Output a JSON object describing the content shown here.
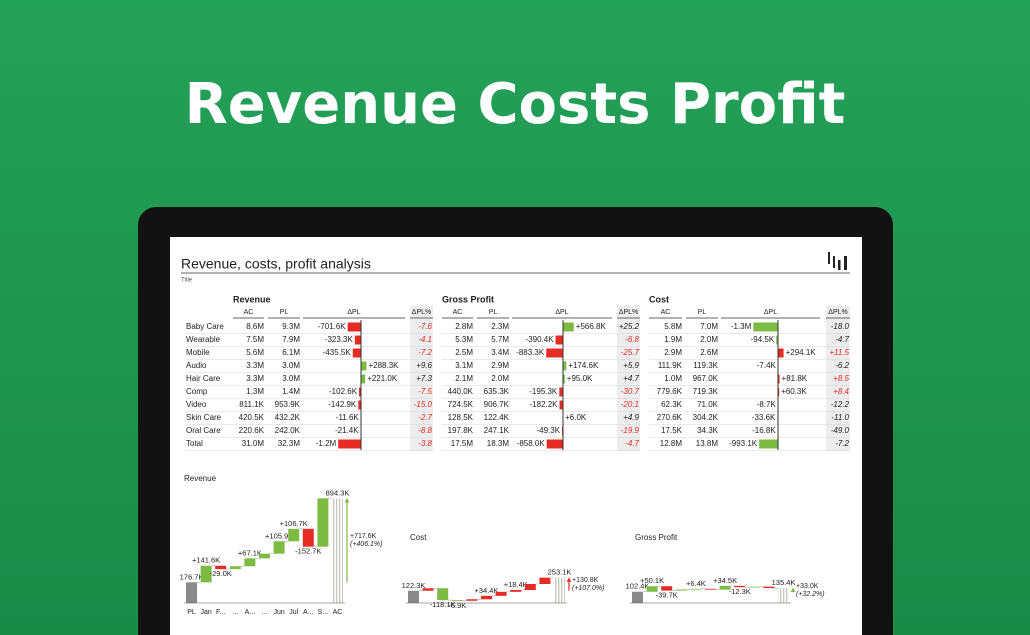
{
  "header": {
    "title": "Revenue Costs Profit"
  },
  "report": {
    "title": "Revenue, costs, profit analysis",
    "subtitle": "Title"
  },
  "table": {
    "row_labels": [
      "Baby Care",
      "Wearable",
      "Mobile",
      "Audio",
      "Hair Care",
      "Comp",
      "Video",
      "Skin Care",
      "Oral Care",
      "Total"
    ],
    "column_headers": [
      "AC",
      "PL",
      "ΔPL",
      "ΔPL%"
    ],
    "sections": [
      {
        "name": "Revenue",
        "increase_is_good": true,
        "good_color": "#7dbb42",
        "bad_color": "#e42b24",
        "rows": [
          {
            "ac": "8.6M",
            "pl": "9.3M",
            "dpl": "-701.6K",
            "dpl_value": -701.6,
            "dpl_pct": "-7.6"
          },
          {
            "ac": "7.5M",
            "pl": "7.9M",
            "dpl": "-323.3K",
            "dpl_value": -323.3,
            "dpl_pct": "-4.1"
          },
          {
            "ac": "5.6M",
            "pl": "6.1M",
            "dpl": "-435.5K",
            "dpl_value": -435.5,
            "dpl_pct": "-7.2"
          },
          {
            "ac": "3.3M",
            "pl": "3.0M",
            "dpl": "+288.3K",
            "dpl_value": 288.3,
            "dpl_pct": "+9.6"
          },
          {
            "ac": "3.3M",
            "pl": "3.0M",
            "dpl": "+221.0K",
            "dpl_value": 221.0,
            "dpl_pct": "+7.3"
          },
          {
            "ac": "1.3M",
            "pl": "1.4M",
            "dpl": "-102.6K",
            "dpl_value": -102.6,
            "dpl_pct": "-7.5"
          },
          {
            "ac": "811.1K",
            "pl": "953.9K",
            "dpl": "-142.9K",
            "dpl_value": -142.9,
            "dpl_pct": "-15.0"
          },
          {
            "ac": "420.5K",
            "pl": "432.2K",
            "dpl": "-11.6K",
            "dpl_value": -11.6,
            "dpl_pct": "-2.7"
          },
          {
            "ac": "220.6K",
            "pl": "242.0K",
            "dpl": "-21.4K",
            "dpl_value": -21.4,
            "dpl_pct": "-8.8"
          },
          {
            "ac": "31.0M",
            "pl": "32.3M",
            "dpl": "-1.2M",
            "dpl_value": -1200,
            "dpl_pct": "-3.8"
          }
        ]
      },
      {
        "name": "Gross Profit",
        "increase_is_good": true,
        "good_color": "#7dbb42",
        "bad_color": "#e42b24",
        "rows": [
          {
            "ac": "2.8M",
            "pl": "2.3M",
            "dpl": "+566.8K",
            "dpl_value": 566.8,
            "dpl_pct": "+25.2"
          },
          {
            "ac": "5.3M",
            "pl": "5.7M",
            "dpl": "-390.4K",
            "dpl_value": -390.4,
            "dpl_pct": "-6.8"
          },
          {
            "ac": "2.5M",
            "pl": "3.4M",
            "dpl": "-883.3K",
            "dpl_value": -883.3,
            "dpl_pct": "-25.7"
          },
          {
            "ac": "3.1M",
            "pl": "2.9M",
            "dpl": "+174.6K",
            "dpl_value": 174.6,
            "dpl_pct": "+5.9"
          },
          {
            "ac": "2.1M",
            "pl": "2.0M",
            "dpl": "+95.0K",
            "dpl_value": 95.0,
            "dpl_pct": "+4.7"
          },
          {
            "ac": "440.0K",
            "pl": "635.3K",
            "dpl": "-195.3K",
            "dpl_value": -195.3,
            "dpl_pct": "-30.7"
          },
          {
            "ac": "724.5K",
            "pl": "906.7K",
            "dpl": "-182.2K",
            "dpl_value": -182.2,
            "dpl_pct": "-20.1"
          },
          {
            "ac": "128.5K",
            "pl": "122.4K",
            "dpl": "+6.0K",
            "dpl_value": 6.0,
            "dpl_pct": "+4.9"
          },
          {
            "ac": "197.8K",
            "pl": "247.1K",
            "dpl": "-49.3K",
            "dpl_value": -49.3,
            "dpl_pct": "-19.9"
          },
          {
            "ac": "17.5M",
            "pl": "18.3M",
            "dpl": "-858.0K",
            "dpl_value": -858.0,
            "dpl_pct": "-4.7"
          }
        ]
      },
      {
        "name": "Cost",
        "increase_is_good": false,
        "good_color": "#7dbb42",
        "bad_color": "#e42b24",
        "rows": [
          {
            "ac": "5.8M",
            "pl": "7.0M",
            "dpl": "-1.3M",
            "dpl_value": -1300,
            "dpl_pct": "-18.0"
          },
          {
            "ac": "1.9M",
            "pl": "2.0M",
            "dpl": "-94.5K",
            "dpl_value": -94.5,
            "dpl_pct": "-4.7"
          },
          {
            "ac": "2.9M",
            "pl": "2.6M",
            "dpl": "+294.1K",
            "dpl_value": 294.1,
            "dpl_pct": "+11.5"
          },
          {
            "ac": "111.9K",
            "pl": "119.3K",
            "dpl": "-7.4K",
            "dpl_value": -7.4,
            "dpl_pct": "-6.2"
          },
          {
            "ac": "1.0M",
            "pl": "967.0K",
            "dpl": "+81.8K",
            "dpl_value": 81.8,
            "dpl_pct": "+8.5"
          },
          {
            "ac": "779.6K",
            "pl": "719.3K",
            "dpl": "+60.3K",
            "dpl_value": 60.3,
            "dpl_pct": "+8.4"
          },
          {
            "ac": "62.3K",
            "pl": "71.0K",
            "dpl": "-8.7K",
            "dpl_value": -8.7,
            "dpl_pct": "-12.2"
          },
          {
            "ac": "270.6K",
            "pl": "304.2K",
            "dpl": "-33.6K",
            "dpl_value": -33.6,
            "dpl_pct": "-11.0"
          },
          {
            "ac": "17.5K",
            "pl": "34.3K",
            "dpl": "-16.8K",
            "dpl_value": -16.8,
            "dpl_pct": "-49.0"
          },
          {
            "ac": "12.8M",
            "pl": "13.8M",
            "dpl": "-993.1K",
            "dpl_value": -993.1,
            "dpl_pct": "-7.2"
          }
        ]
      }
    ]
  },
  "charts": [
    {
      "type": "waterfall",
      "title": "Revenue",
      "increase_color": "#7dbb42",
      "decrease_color": "#e42b24",
      "categories": [
        "PL",
        "Jan",
        "F...",
        "...",
        "A...",
        "...",
        "Jun",
        "Jul",
        "A...",
        "S...",
        "AC"
      ],
      "values": [
        176.7,
        141.6,
        -29.0,
        25.0,
        67.1,
        40.0,
        105.9,
        106.7,
        -152.7,
        413.0,
        894.3
      ],
      "value_labels": [
        "176.7K",
        "+141.6K",
        "-29.0K",
        null,
        "+67.1K",
        null,
        "+105.9K",
        "+106.7K",
        "-152.7K",
        null,
        "894.3K"
      ],
      "annotation": [
        "+717.6K",
        "(+406.1%)"
      ]
    },
    {
      "type": "waterfall",
      "title": "Cost",
      "increase_color": "#e42b24",
      "decrease_color": "#7dbb42",
      "values": [
        122.3,
        25.0,
        -118.1,
        -6.9,
        15.0,
        34.4,
        40.0,
        18.4,
        60.0,
        63.0,
        253.1
      ],
      "value_labels": [
        "122.3K",
        null,
        "-118.1K",
        "-6.9K",
        null,
        "+34.4K",
        null,
        "+18.4K",
        null,
        null,
        "253.1K"
      ],
      "annotation": [
        "+130.8K",
        "(+107.0%)"
      ]
    },
    {
      "type": "waterfall",
      "title": "Gross Profit",
      "increase_color": "#7dbb42",
      "decrease_color": "#e42b24",
      "values": [
        102.4,
        50.1,
        -39.7,
        10.0,
        6.4,
        -8.0,
        34.5,
        -12.3,
        5.0,
        -13.0,
        135.4
      ],
      "value_labels": [
        "102.4K",
        "+50.1K",
        "-39.7K",
        null,
        "+6.4K",
        null,
        "+34.5K",
        "-12.3K",
        null,
        null,
        "135.4K"
      ],
      "annotation": [
        "+33.0K",
        "(+32.2%)"
      ]
    }
  ]
}
